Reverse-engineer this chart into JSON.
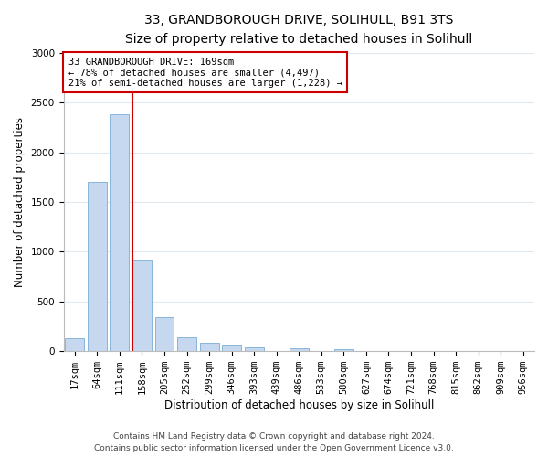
{
  "title_line1": "33, GRANDBOROUGH DRIVE, SOLIHULL, B91 3TS",
  "title_line2": "Size of property relative to detached houses in Solihull",
  "xlabel": "Distribution of detached houses by size in Solihull",
  "ylabel": "Number of detached properties",
  "categories": [
    "17sqm",
    "64sqm",
    "111sqm",
    "158sqm",
    "205sqm",
    "252sqm",
    "299sqm",
    "346sqm",
    "393sqm",
    "439sqm",
    "486sqm",
    "533sqm",
    "580sqm",
    "627sqm",
    "674sqm",
    "721sqm",
    "768sqm",
    "815sqm",
    "862sqm",
    "909sqm",
    "956sqm"
  ],
  "values": [
    130,
    1700,
    2380,
    910,
    340,
    140,
    85,
    55,
    40,
    0,
    30,
    0,
    25,
    0,
    0,
    0,
    0,
    0,
    0,
    0,
    0
  ],
  "bar_color": "#c5d8ef",
  "bar_edge_color": "#7aadd4",
  "property_line_color": "#cc0000",
  "annotation_text": "33 GRANDBOROUGH DRIVE: 169sqm\n← 78% of detached houses are smaller (4,497)\n21% of semi-detached houses are larger (1,228) →",
  "annotation_box_color": "#ffffff",
  "annotation_box_edge_color": "#cc0000",
  "ylim": [
    0,
    3000
  ],
  "yticks": [
    0,
    500,
    1000,
    1500,
    2000,
    2500,
    3000
  ],
  "footer_line1": "Contains HM Land Registry data © Crown copyright and database right 2024.",
  "footer_line2": "Contains public sector information licensed under the Open Government Licence v3.0.",
  "background_color": "#ffffff",
  "plot_background_color": "#ffffff",
  "grid_color": "#e0e8f0",
  "title_fontsize": 10,
  "subtitle_fontsize": 9,
  "axis_label_fontsize": 8.5,
  "tick_fontsize": 7.5,
  "annotation_fontsize": 7.5,
  "footer_fontsize": 6.5
}
